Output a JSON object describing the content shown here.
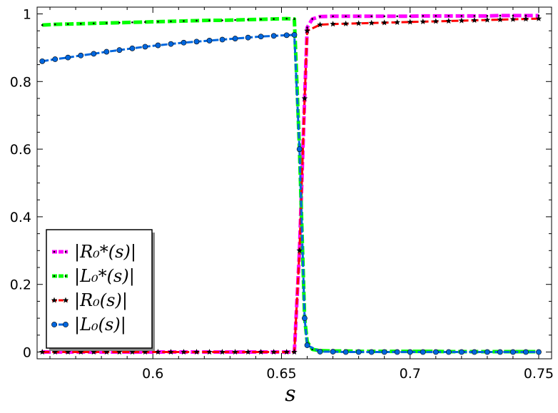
{
  "chart_data": {
    "type": "line",
    "title": "",
    "xlabel": "s",
    "ylabel": "",
    "xlim": [
      0.555,
      0.755
    ],
    "ylim": [
      -0.02,
      1.02
    ],
    "xticks": [
      0.6,
      0.65,
      0.7,
      0.75
    ],
    "xtick_labels": [
      "0.6",
      "0.65",
      "0.7",
      "0.75"
    ],
    "yticks": [
      0,
      0.2,
      0.4,
      0.6,
      0.8,
      1
    ],
    "ytick_labels": [
      "0",
      "0.2",
      "0.4",
      "0.6",
      "0.8",
      "1"
    ],
    "grid": false,
    "legend_position": "bottom-left",
    "series": [
      {
        "name": "|R₀*(s)|",
        "color": "#ff00ff",
        "marker": "dot",
        "x": [
          0.557,
          0.562,
          0.567,
          0.572,
          0.577,
          0.582,
          0.587,
          0.592,
          0.597,
          0.602,
          0.607,
          0.612,
          0.617,
          0.622,
          0.627,
          0.632,
          0.637,
          0.642,
          0.647,
          0.652,
          0.655,
          0.657,
          0.659,
          0.66,
          0.662,
          0.665,
          0.67,
          0.675,
          0.68,
          0.685,
          0.69,
          0.695,
          0.7,
          0.705,
          0.71,
          0.715,
          0.72,
          0.725,
          0.73,
          0.735,
          0.74,
          0.745,
          0.75
        ],
        "y": [
          0,
          0,
          0,
          0,
          0,
          0,
          0,
          0,
          0,
          0,
          0,
          0,
          0,
          0,
          0,
          0,
          0,
          0,
          0,
          0,
          0,
          0.3,
          0.75,
          0.96,
          0.985,
          0.992,
          0.993,
          0.993,
          0.993,
          0.993,
          0.993,
          0.993,
          0.993,
          0.994,
          0.994,
          0.994,
          0.994,
          0.994,
          0.994,
          0.995,
          0.995,
          0.995,
          0.995
        ]
      },
      {
        "name": "|L₀*(s)|",
        "color": "#00ff00",
        "marker": "dot",
        "x": [
          0.557,
          0.562,
          0.567,
          0.572,
          0.577,
          0.582,
          0.587,
          0.592,
          0.597,
          0.602,
          0.607,
          0.612,
          0.617,
          0.622,
          0.627,
          0.632,
          0.637,
          0.642,
          0.647,
          0.652,
          0.655,
          0.657,
          0.659,
          0.66,
          0.662,
          0.665,
          0.67,
          0.675,
          0.68,
          0.685,
          0.69,
          0.695,
          0.7,
          0.705,
          0.71,
          0.715,
          0.72,
          0.725,
          0.73,
          0.735,
          0.74,
          0.745,
          0.75
        ],
        "y": [
          0.967,
          0.969,
          0.97,
          0.971,
          0.972,
          0.973,
          0.974,
          0.975,
          0.976,
          0.977,
          0.978,
          0.979,
          0.98,
          0.981,
          0.981,
          0.982,
          0.983,
          0.984,
          0.985,
          0.986,
          0.985,
          0.6,
          0.1,
          0.03,
          0.008,
          0.004,
          0.003,
          0.003,
          0.002,
          0.002,
          0.002,
          0.002,
          0.002,
          0.002,
          0.002,
          0.001,
          0.001,
          0.001,
          0.001,
          0.001,
          0.001,
          0.001,
          0.001
        ]
      },
      {
        "name": "|R₀(s)|",
        "color": "#ff0000",
        "marker": "star",
        "x": [
          0.557,
          0.562,
          0.567,
          0.572,
          0.577,
          0.582,
          0.587,
          0.592,
          0.597,
          0.602,
          0.607,
          0.612,
          0.617,
          0.622,
          0.627,
          0.632,
          0.637,
          0.642,
          0.647,
          0.652,
          0.655,
          0.657,
          0.659,
          0.66,
          0.665,
          0.67,
          0.675,
          0.68,
          0.685,
          0.69,
          0.695,
          0.7,
          0.705,
          0.71,
          0.715,
          0.72,
          0.725,
          0.73,
          0.735,
          0.74,
          0.745,
          0.75
        ],
        "y": [
          0,
          0,
          0,
          0,
          0,
          0,
          0,
          0,
          0,
          0,
          0,
          0,
          0,
          0,
          0,
          0,
          0,
          0,
          0,
          0,
          0,
          0.3,
          0.75,
          0.95,
          0.968,
          0.97,
          0.971,
          0.972,
          0.973,
          0.974,
          0.975,
          0.976,
          0.977,
          0.978,
          0.979,
          0.98,
          0.981,
          0.982,
          0.983,
          0.984,
          0.985,
          0.986
        ]
      },
      {
        "name": "|L₀(s)|",
        "color": "#0066dd",
        "marker": "circle",
        "x": [
          0.557,
          0.562,
          0.567,
          0.572,
          0.577,
          0.582,
          0.587,
          0.592,
          0.597,
          0.602,
          0.607,
          0.612,
          0.617,
          0.622,
          0.627,
          0.632,
          0.637,
          0.642,
          0.647,
          0.652,
          0.655,
          0.657,
          0.659,
          0.66,
          0.665,
          0.67,
          0.675,
          0.68,
          0.685,
          0.69,
          0.695,
          0.7,
          0.705,
          0.71,
          0.715,
          0.72,
          0.725,
          0.73,
          0.735,
          0.74,
          0.745,
          0.75
        ],
        "y": [
          0.86,
          0.866,
          0.871,
          0.877,
          0.882,
          0.888,
          0.893,
          0.898,
          0.903,
          0.907,
          0.911,
          0.915,
          0.918,
          0.921,
          0.924,
          0.927,
          0.93,
          0.933,
          0.935,
          0.937,
          0.938,
          0.6,
          0.1,
          0.02,
          0.001,
          0.001,
          0,
          0,
          0,
          0,
          0,
          0,
          0,
          0,
          0,
          0,
          0,
          0,
          0,
          0,
          0,
          0
        ]
      }
    ]
  }
}
